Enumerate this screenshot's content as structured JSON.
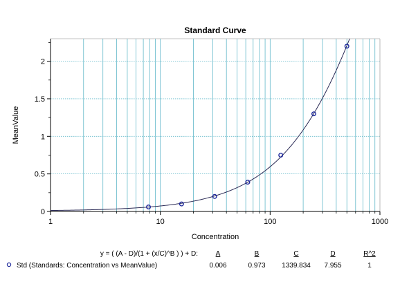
{
  "chart_data": {
    "type": "scatter",
    "title": "Standard Curve",
    "xlabel": "Concentration",
    "ylabel": "MeanValue",
    "xscale": "log",
    "xlim": [
      1,
      1000
    ],
    "ylim": [
      0,
      2.3
    ],
    "grid": true,
    "x_ticks": [
      1,
      10,
      100,
      1000
    ],
    "x_tick_labels": [
      "1",
      "10",
      "100",
      "1000"
    ],
    "y_ticks": [
      0,
      0.5,
      1,
      1.5,
      2
    ],
    "y_tick_labels": [
      "0",
      "0.5",
      "1",
      "1.5",
      "2"
    ],
    "series": [
      {
        "name": "Std (Standards: Concentration vs MeanValue)",
        "x": [
          7.8,
          15.6,
          31.25,
          62.5,
          125,
          250,
          500
        ],
        "y": [
          0.06,
          0.1,
          0.2,
          0.39,
          0.75,
          1.3,
          2.2
        ]
      }
    ],
    "fit": {
      "formula": "y = ( (A - D)/(1 + (x/C)^B ) ) + D:",
      "headers": [
        "A",
        "B",
        "C",
        "D",
        "R^2"
      ],
      "values": [
        "0.006",
        "0.973",
        "1339.834",
        "7.955",
        "1"
      ],
      "params": {
        "A": 0.006,
        "B": 0.973,
        "C": 1339.834,
        "D": 7.955
      }
    },
    "colors": {
      "grid": "#62b8c9",
      "curve": "#2a2a55",
      "marker": "#1f2a9c",
      "axis": "#000000"
    }
  }
}
